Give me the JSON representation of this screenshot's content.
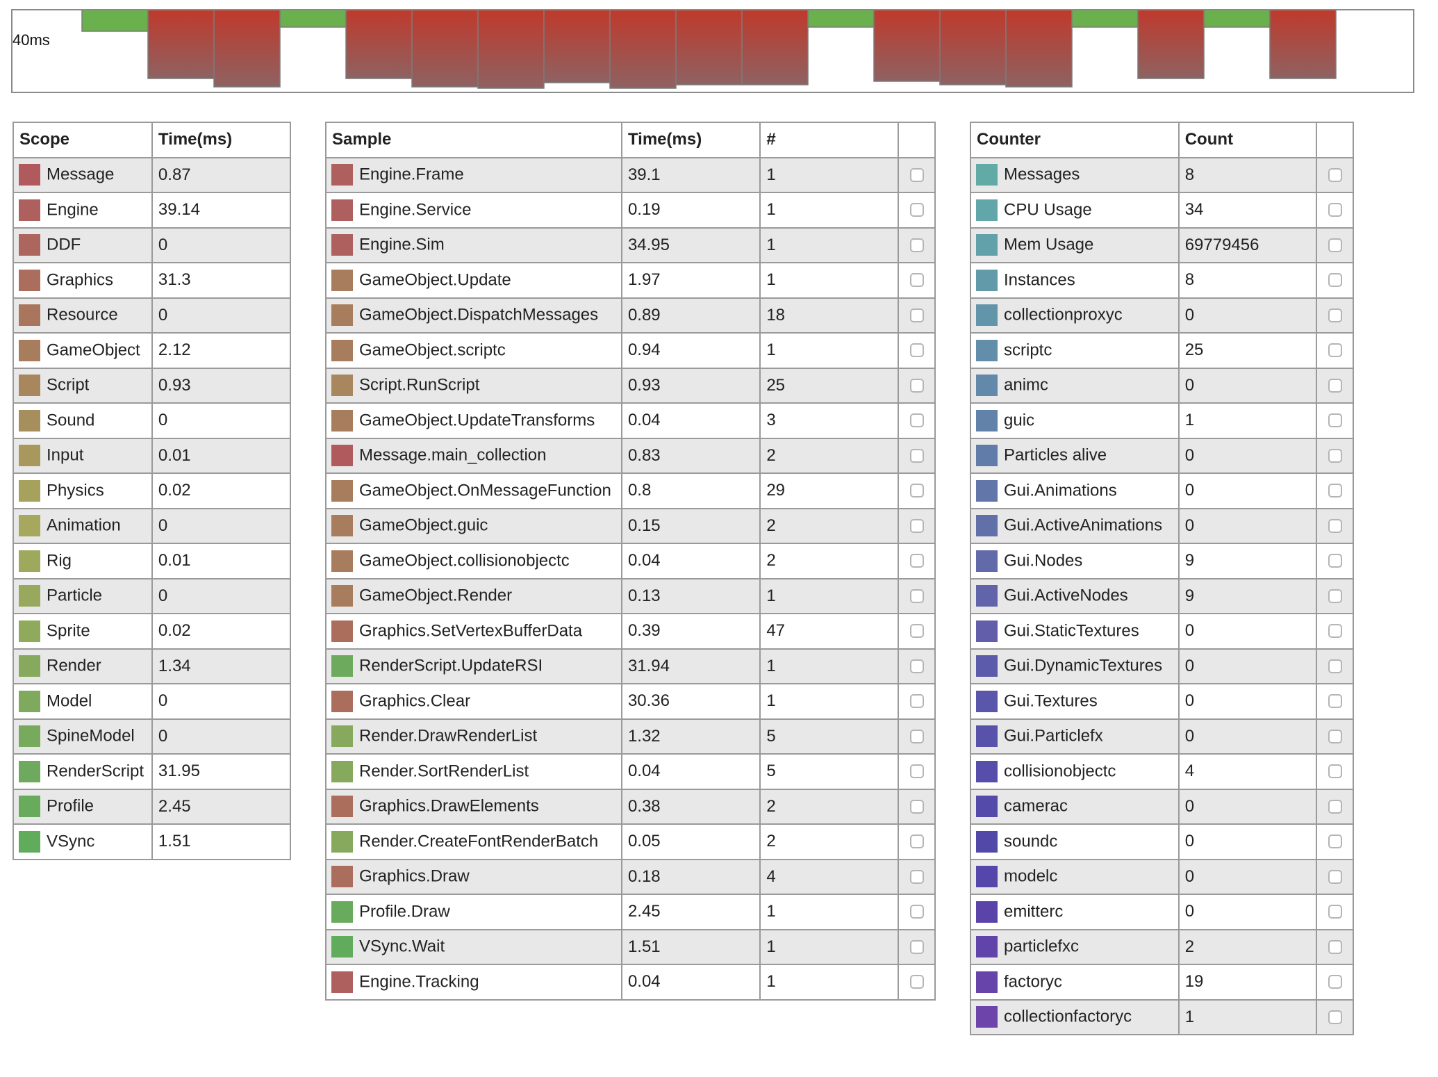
{
  "frame_graph": {
    "label": "40ms",
    "frames": [
      {
        "state": "ok",
        "level": 0.27
      },
      {
        "state": "slow",
        "level": 0.85
      },
      {
        "state": "slow",
        "level": 0.95
      },
      {
        "state": "ok",
        "level": 0.22
      },
      {
        "state": "slow",
        "level": 0.85
      },
      {
        "state": "slow",
        "level": 0.95
      },
      {
        "state": "slow",
        "level": 0.97
      },
      {
        "state": "slow",
        "level": 0.9
      },
      {
        "state": "slow",
        "level": 0.97
      },
      {
        "state": "slow",
        "level": 0.92
      },
      {
        "state": "slow",
        "level": 0.92
      },
      {
        "state": "ok",
        "level": 0.22
      },
      {
        "state": "slow",
        "level": 0.88
      },
      {
        "state": "slow",
        "level": 0.92
      },
      {
        "state": "slow",
        "level": 0.95
      },
      {
        "state": "ok",
        "level": 0.22
      },
      {
        "state": "slow",
        "level": 0.85
      },
      {
        "state": "ok",
        "level": 0.22
      },
      {
        "state": "slow",
        "level": 0.85
      }
    ],
    "colors": {
      "ok": "#6ab04c",
      "slow_top": "#c0392b",
      "slow_bottom": "#8e6262"
    }
  },
  "scope_table": {
    "headers": [
      "Scope",
      "Time(ms)"
    ],
    "rows": [
      {
        "name": "Message",
        "time": "0.87",
        "color": "#b05a5e"
      },
      {
        "name": "Engine",
        "time": "39.14",
        "color": "#ad605d"
      },
      {
        "name": "DDF",
        "time": "0",
        "color": "#ad665d"
      },
      {
        "name": "Graphics",
        "time": "31.3",
        "color": "#ab6e5d"
      },
      {
        "name": "Resource",
        "time": "0",
        "color": "#aa755d"
      },
      {
        "name": "GameObject",
        "time": "2.12",
        "color": "#a87d5d"
      },
      {
        "name": "Script",
        "time": "0.93",
        "color": "#a8865e"
      },
      {
        "name": "Sound",
        "time": "0",
        "color": "#a68f5d"
      },
      {
        "name": "Input",
        "time": "0.01",
        "color": "#a8985d"
      },
      {
        "name": "Physics",
        "time": "0.02",
        "color": "#a6a25d"
      },
      {
        "name": "Animation",
        "time": "0",
        "color": "#a6a95d"
      },
      {
        "name": "Rig",
        "time": "0.01",
        "color": "#9ea95d"
      },
      {
        "name": "Particle",
        "time": "0",
        "color": "#98a95d"
      },
      {
        "name": "Sprite",
        "time": "0.02",
        "color": "#8fa95d"
      },
      {
        "name": "Render",
        "time": "1.34",
        "color": "#86a95d"
      },
      {
        "name": "Model",
        "time": "0",
        "color": "#7fa95d"
      },
      {
        "name": "SpineModel",
        "time": "0",
        "color": "#77aa5d"
      },
      {
        "name": "RenderScript",
        "time": "31.95",
        "color": "#6daa5d"
      },
      {
        "name": "Profile",
        "time": "2.45",
        "color": "#69ab5d"
      },
      {
        "name": "VSync",
        "time": "1.51",
        "color": "#60ab5c"
      }
    ]
  },
  "sample_table": {
    "headers": [
      "Sample",
      "Time(ms)",
      "#",
      ""
    ],
    "rows": [
      {
        "name": "Engine.Frame",
        "time": "39.1",
        "count": "1",
        "color": "#ad605d"
      },
      {
        "name": "Engine.Service",
        "time": "0.19",
        "count": "1",
        "color": "#ad605d"
      },
      {
        "name": "Engine.Sim",
        "time": "34.95",
        "count": "1",
        "color": "#ad605d"
      },
      {
        "name": "GameObject.Update",
        "time": "1.97",
        "count": "1",
        "color": "#a87d5d"
      },
      {
        "name": "GameObject.DispatchMessages",
        "time": "0.89",
        "count": "18",
        "color": "#a87d5d"
      },
      {
        "name": "GameObject.scriptc",
        "time": "0.94",
        "count": "1",
        "color": "#a87d5d"
      },
      {
        "name": "Script.RunScript",
        "time": "0.93",
        "count": "25",
        "color": "#a8865e"
      },
      {
        "name": "GameObject.UpdateTransforms",
        "time": "0.04",
        "count": "3",
        "color": "#a87d5d"
      },
      {
        "name": "Message.main_collection",
        "time": "0.83",
        "count": "2",
        "color": "#b05a5e"
      },
      {
        "name": "GameObject.OnMessageFunction",
        "time": "0.8",
        "count": "29",
        "color": "#a87d5d"
      },
      {
        "name": "GameObject.guic",
        "time": "0.15",
        "count": "2",
        "color": "#a87d5d"
      },
      {
        "name": "GameObject.collisionobjectc",
        "time": "0.04",
        "count": "2",
        "color": "#a87d5d"
      },
      {
        "name": "GameObject.Render",
        "time": "0.13",
        "count": "1",
        "color": "#a87d5d"
      },
      {
        "name": "Graphics.SetVertexBufferData",
        "time": "0.39",
        "count": "47",
        "color": "#ab6e5d"
      },
      {
        "name": "RenderScript.UpdateRSI",
        "time": "31.94",
        "count": "1",
        "color": "#6daa5d"
      },
      {
        "name": "Graphics.Clear",
        "time": "30.36",
        "count": "1",
        "color": "#ab6e5d"
      },
      {
        "name": "Render.DrawRenderList",
        "time": "1.32",
        "count": "5",
        "color": "#86a95d"
      },
      {
        "name": "Render.SortRenderList",
        "time": "0.04",
        "count": "5",
        "color": "#86a95d"
      },
      {
        "name": "Graphics.DrawElements",
        "time": "0.38",
        "count": "2",
        "color": "#ab6e5d"
      },
      {
        "name": "Render.CreateFontRenderBatch",
        "time": "0.05",
        "count": "2",
        "color": "#86a95d"
      },
      {
        "name": "Graphics.Draw",
        "time": "0.18",
        "count": "4",
        "color": "#ab6e5d"
      },
      {
        "name": "Profile.Draw",
        "time": "2.45",
        "count": "1",
        "color": "#69ab5d"
      },
      {
        "name": "VSync.Wait",
        "time": "1.51",
        "count": "1",
        "color": "#60ab5c"
      },
      {
        "name": "Engine.Tracking",
        "time": "0.04",
        "count": "1",
        "color": "#ad605d"
      }
    ]
  },
  "counter_table": {
    "headers": [
      "Counter",
      "Count",
      ""
    ],
    "rows": [
      {
        "name": "Messages",
        "count": "8",
        "color": "#62aaa6"
      },
      {
        "name": "CPU Usage",
        "count": "34",
        "color": "#62a6aa"
      },
      {
        "name": "Mem Usage",
        "count": "69779456",
        "color": "#62a0aa"
      },
      {
        "name": "Instances",
        "count": "8",
        "color": "#629aaa"
      },
      {
        "name": "collectionproxyc",
        "count": "0",
        "color": "#6294aa"
      },
      {
        "name": "scriptc",
        "count": "25",
        "color": "#628eaa"
      },
      {
        "name": "animc",
        "count": "0",
        "color": "#6288aa"
      },
      {
        "name": "guic",
        "count": "1",
        "color": "#6282aa"
      },
      {
        "name": "Particles alive",
        "count": "0",
        "color": "#627caa"
      },
      {
        "name": "Gui.Animations",
        "count": "0",
        "color": "#6276aa"
      },
      {
        "name": "Gui.ActiveAnimations",
        "count": "0",
        "color": "#6270aa"
      },
      {
        "name": "Gui.Nodes",
        "count": "9",
        "color": "#626aaa"
      },
      {
        "name": "Gui.ActiveNodes",
        "count": "9",
        "color": "#6264aa"
      },
      {
        "name": "Gui.StaticTextures",
        "count": "0",
        "color": "#625eaa"
      },
      {
        "name": "Gui.DynamicTextures",
        "count": "0",
        "color": "#5c5aaa"
      },
      {
        "name": "Gui.Textures",
        "count": "0",
        "color": "#5a56aa"
      },
      {
        "name": "Gui.Particlefx",
        "count": "0",
        "color": "#5852aa"
      },
      {
        "name": "collisionobjectc",
        "count": "4",
        "color": "#564eaa"
      },
      {
        "name": "camerac",
        "count": "0",
        "color": "#544aaa"
      },
      {
        "name": "soundc",
        "count": "0",
        "color": "#5248a8"
      },
      {
        "name": "modelc",
        "count": "0",
        "color": "#5446aa"
      },
      {
        "name": "emitterc",
        "count": "0",
        "color": "#5a44aa"
      },
      {
        "name": "particlefxc",
        "count": "2",
        "color": "#6044aa"
      },
      {
        "name": "factoryc",
        "count": "19",
        "color": "#6644aa"
      },
      {
        "name": "collectionfactoryc",
        "count": "1",
        "color": "#6c44aa"
      }
    ]
  }
}
